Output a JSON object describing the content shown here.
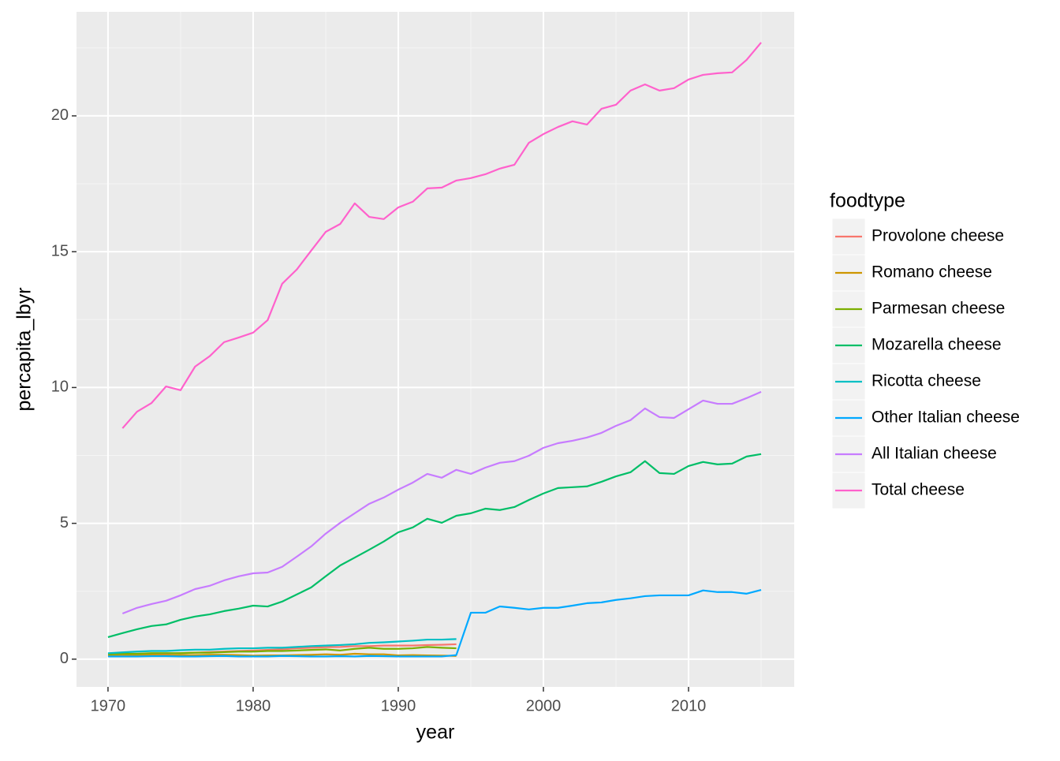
{
  "chart_data": {
    "type": "line",
    "x_label": "year",
    "y_label": "percapita_lbyr",
    "legend_title": "foodtype",
    "x": [
      1970,
      1971,
      1972,
      1973,
      1974,
      1975,
      1976,
      1977,
      1978,
      1979,
      1980,
      1981,
      1982,
      1983,
      1984,
      1985,
      1986,
      1987,
      1988,
      1989,
      1990,
      1991,
      1992,
      1993,
      1994,
      1995,
      1996,
      1997,
      1998,
      1999,
      2000,
      2001,
      2002,
      2003,
      2004,
      2005,
      2006,
      2007,
      2008,
      2009,
      2010,
      2011,
      2012,
      2013,
      2014,
      2015
    ],
    "xlim": [
      1967.83,
      2017.28
    ],
    "xticks": [
      1970,
      1980,
      1990,
      2000,
      2010
    ],
    "ylim": [
      -1.02,
      23.83
    ],
    "yticks": [
      0,
      5,
      10,
      15,
      20
    ],
    "grid": true,
    "legend": "right",
    "series": [
      {
        "name": "Provolone cheese",
        "color": "#F8766D",
        "values": [
          0.15,
          0.17,
          0.18,
          0.2,
          0.2,
          0.22,
          0.24,
          0.26,
          0.28,
          0.3,
          0.32,
          0.34,
          0.36,
          0.4,
          0.42,
          0.44,
          0.45,
          0.48,
          0.48,
          0.5,
          0.5,
          0.5,
          0.52,
          0.53,
          0.55,
          null,
          null,
          null,
          null,
          null,
          null,
          null,
          null,
          null,
          null,
          null,
          null,
          null,
          null,
          null,
          null,
          null,
          null,
          null,
          null,
          null
        ]
      },
      {
        "name": "Romano cheese",
        "color": "#CD9600",
        "values": [
          0.12,
          0.13,
          0.14,
          0.15,
          0.14,
          0.15,
          0.15,
          0.16,
          0.16,
          0.15,
          0.13,
          0.14,
          0.14,
          0.15,
          0.16,
          0.18,
          0.16,
          0.2,
          0.18,
          0.18,
          0.14,
          0.15,
          0.14,
          0.13,
          0.12,
          null,
          null,
          null,
          null,
          null,
          null,
          null,
          null,
          null,
          null,
          null,
          null,
          null,
          null,
          null,
          null,
          null,
          null,
          null,
          null,
          null
        ]
      },
      {
        "name": "Parmesan cheese",
        "color": "#7CAE00",
        "values": [
          0.18,
          0.2,
          0.2,
          0.22,
          0.22,
          0.22,
          0.24,
          0.24,
          0.26,
          0.28,
          0.28,
          0.3,
          0.3,
          0.32,
          0.34,
          0.36,
          0.32,
          0.38,
          0.42,
          0.38,
          0.38,
          0.4,
          0.45,
          0.42,
          0.4,
          null,
          null,
          null,
          null,
          null,
          null,
          null,
          null,
          null,
          null,
          null,
          null,
          null,
          null,
          null,
          null,
          null,
          null,
          null,
          null,
          null
        ]
      },
      {
        "name": "Mozarella cheese",
        "color": "#00BE67",
        "values": [
          0.81,
          0.96,
          1.1,
          1.22,
          1.28,
          1.45,
          1.57,
          1.65,
          1.77,
          1.86,
          1.97,
          1.94,
          2.12,
          2.38,
          2.64,
          3.05,
          3.45,
          3.74,
          4.03,
          4.33,
          4.67,
          4.85,
          5.17,
          5.02,
          5.28,
          5.37,
          5.54,
          5.49,
          5.6,
          5.86,
          6.1,
          6.3,
          6.33,
          6.36,
          6.53,
          6.73,
          6.88,
          7.29,
          6.85,
          6.82,
          7.11,
          7.26,
          7.17,
          7.2,
          7.46,
          7.55
        ]
      },
      {
        "name": "Ricotta cheese",
        "color": "#00BFC4",
        "values": [
          0.22,
          0.25,
          0.28,
          0.3,
          0.3,
          0.33,
          0.35,
          0.35,
          0.38,
          0.4,
          0.4,
          0.42,
          0.42,
          0.45,
          0.48,
          0.5,
          0.52,
          0.55,
          0.6,
          0.62,
          0.65,
          0.68,
          0.72,
          0.72,
          0.74,
          null,
          null,
          null,
          null,
          null,
          null,
          null,
          null,
          null,
          null,
          null,
          null,
          null,
          null,
          null,
          null,
          null,
          null,
          null,
          null,
          null
        ]
      },
      {
        "name": "Other Italian cheese",
        "color": "#00A9FF",
        "values": [
          0.1,
          0.1,
          0.1,
          0.11,
          0.11,
          0.1,
          0.1,
          0.11,
          0.12,
          0.1,
          0.1,
          0.1,
          0.12,
          0.11,
          0.1,
          0.1,
          0.11,
          0.1,
          0.12,
          0.11,
          0.1,
          0.1,
          0.1,
          0.1,
          0.15,
          1.71,
          1.71,
          1.94,
          1.89,
          1.83,
          1.89,
          1.89,
          1.97,
          2.06,
          2.09,
          2.18,
          2.24,
          2.32,
          2.35,
          2.35,
          2.35,
          2.53,
          2.47,
          2.47,
          2.41,
          2.55
        ]
      },
      {
        "name": "All Italian cheese",
        "color": "#C77CFF",
        "values": [
          null,
          1.68,
          1.89,
          2.03,
          2.15,
          2.35,
          2.58,
          2.7,
          2.9,
          3.05,
          3.16,
          3.19,
          3.4,
          3.77,
          4.15,
          4.62,
          5.02,
          5.37,
          5.72,
          5.95,
          6.24,
          6.5,
          6.82,
          6.68,
          6.97,
          6.82,
          7.05,
          7.23,
          7.29,
          7.49,
          7.78,
          7.95,
          8.04,
          8.16,
          8.33,
          8.59,
          8.8,
          9.23,
          8.91,
          8.88,
          9.2,
          9.52,
          9.4,
          9.4,
          9.61,
          9.84
        ]
      },
      {
        "name": "Total cheese",
        "color": "#FF61CC",
        "values": [
          null,
          8.5,
          9.11,
          9.43,
          10.04,
          9.9,
          10.77,
          11.15,
          11.67,
          11.84,
          12.02,
          12.48,
          13.82,
          14.34,
          15.04,
          15.73,
          16.02,
          16.78,
          16.28,
          16.2,
          16.63,
          16.84,
          17.33,
          17.36,
          17.62,
          17.71,
          17.85,
          18.06,
          18.2,
          19.01,
          19.33,
          19.59,
          19.8,
          19.68,
          20.26,
          20.41,
          20.93,
          21.16,
          20.93,
          21.02,
          21.34,
          21.51,
          21.57,
          21.6,
          22.06,
          22.7
        ]
      }
    ]
  }
}
